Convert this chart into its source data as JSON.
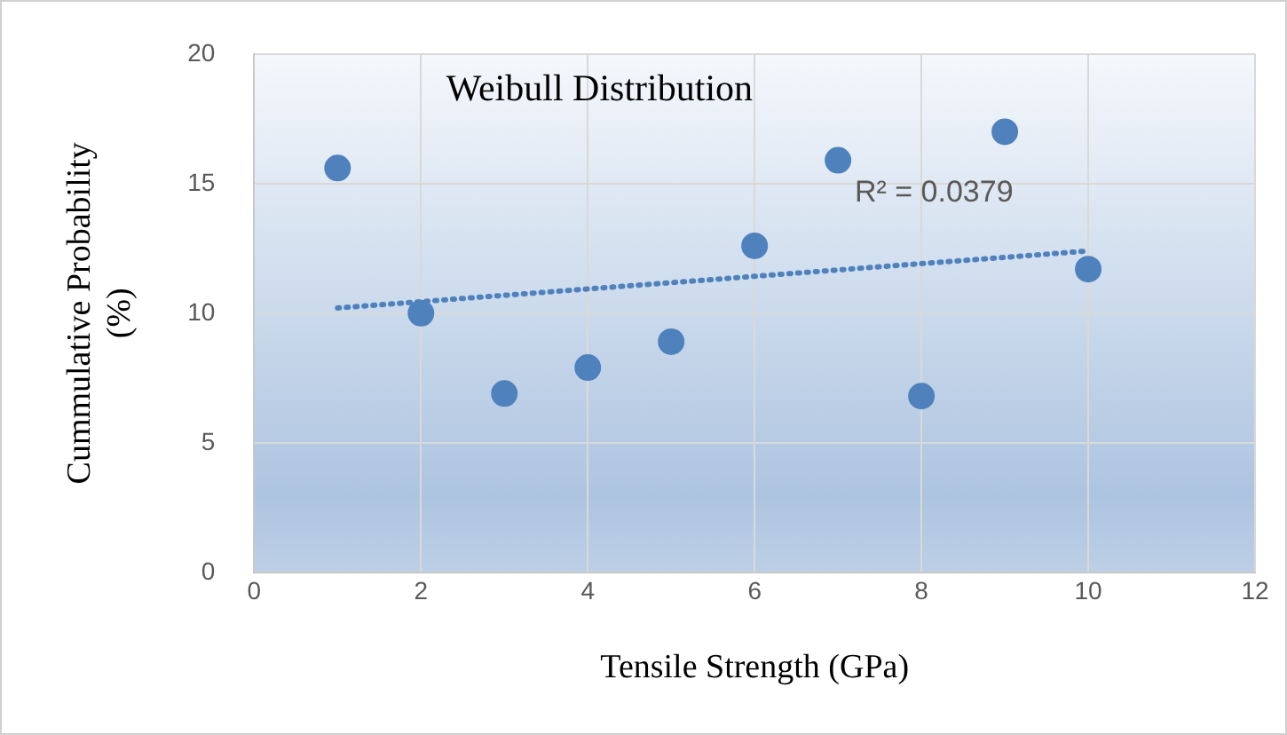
{
  "chart_data": {
    "type": "scatter",
    "title": "Weibull Distribution",
    "xlabel": "Tensile Strength (GPa)",
    "ylabel": "Cummulative Probability (%)",
    "x": [
      1,
      2,
      3,
      4,
      5,
      6,
      7,
      8,
      9,
      10
    ],
    "series": [
      {
        "color": "#4f81bd",
        "marker": "circle",
        "values": [
          15.6,
          10.0,
          6.9,
          7.9,
          8.9,
          12.6,
          15.9,
          6.8,
          17.0,
          11.7
        ]
      },
      {
        "type": "line",
        "color": "#4f81bd",
        "x": [
          1,
          10
        ],
        "values": [
          10.2,
          12.4
        ],
        "line_style": "dotted",
        "marker": "none"
      }
    ],
    "annotations": [
      "R² = 0.0379"
    ],
    "xlim": [
      0,
      12
    ],
    "xticks": [
      0,
      2,
      4,
      6,
      8,
      10,
      12
    ],
    "ylim": [
      0,
      20
    ],
    "yticks": [
      0,
      5,
      10,
      15,
      20
    ],
    "grid": true,
    "legend": false
  }
}
